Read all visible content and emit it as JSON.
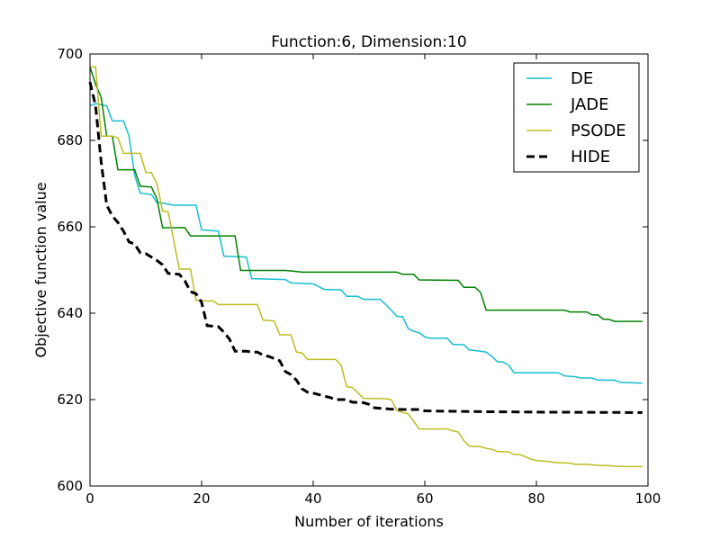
{
  "chart_data": {
    "type": "line",
    "title": "Function:6, Dimension:10",
    "xlabel": "Number of iterations",
    "ylabel": "Objective function value",
    "xlim": [
      0,
      100
    ],
    "ylim": [
      600,
      700
    ],
    "xticks": [
      0,
      20,
      40,
      60,
      80,
      100
    ],
    "yticks": [
      600,
      620,
      640,
      660,
      680,
      700
    ],
    "grid": false,
    "legend_position": "top-right",
    "series": [
      {
        "name": "DE",
        "color": "#17becf",
        "dash": "solid",
        "points": [
          [
            0,
            688
          ],
          [
            1,
            688.5
          ],
          [
            3,
            688
          ],
          [
            4,
            684.5
          ],
          [
            6,
            684.5
          ],
          [
            7,
            681
          ],
          [
            8,
            672
          ],
          [
            9,
            667.8
          ],
          [
            11,
            667.5
          ],
          [
            12,
            665.6
          ],
          [
            13,
            665.5
          ],
          [
            15,
            665
          ],
          [
            19,
            665
          ],
          [
            20,
            659.3
          ],
          [
            23,
            659
          ],
          [
            24,
            653.2
          ],
          [
            28,
            653
          ],
          [
            29,
            648
          ],
          [
            35,
            647.8
          ],
          [
            36,
            647
          ],
          [
            40,
            646.8
          ],
          [
            42,
            645.5
          ],
          [
            45,
            645.4
          ],
          [
            46,
            643.9
          ],
          [
            48,
            643.9
          ],
          [
            49,
            643.2
          ],
          [
            52,
            643.2
          ],
          [
            53,
            642
          ],
          [
            55,
            639.3
          ],
          [
            56,
            639.2
          ],
          [
            57,
            636.5
          ],
          [
            58,
            635.8
          ],
          [
            59,
            635.5
          ],
          [
            60,
            634.5
          ],
          [
            61,
            634.2
          ],
          [
            64,
            634.2
          ],
          [
            65,
            632.8
          ],
          [
            67,
            632.7
          ],
          [
            68,
            631.5
          ],
          [
            70,
            631.2
          ],
          [
            71,
            631
          ],
          [
            72,
            630
          ],
          [
            73,
            628.8
          ],
          [
            74,
            628.7
          ],
          [
            75,
            628
          ],
          [
            76,
            626.2
          ],
          [
            84,
            626.2
          ],
          [
            85,
            625.5
          ],
          [
            87,
            625.3
          ],
          [
            88,
            625
          ],
          [
            90,
            625
          ],
          [
            91,
            624.5
          ],
          [
            94,
            624.5
          ],
          [
            95,
            624
          ],
          [
            99,
            623.8
          ]
        ]
      },
      {
        "name": "JADE",
        "color": "#008000",
        "dash": "solid",
        "points": [
          [
            0,
            697
          ],
          [
            1,
            693
          ],
          [
            2,
            690
          ],
          [
            3,
            681
          ],
          [
            4,
            681
          ],
          [
            5,
            673.2
          ],
          [
            8,
            673.2
          ],
          [
            9,
            669.4
          ],
          [
            11,
            669.2
          ],
          [
            12,
            666.5
          ],
          [
            13,
            659.8
          ],
          [
            17,
            659.8
          ],
          [
            18,
            657.9
          ],
          [
            26,
            657.9
          ],
          [
            27,
            649.9
          ],
          [
            35,
            649.9
          ],
          [
            36,
            649.8
          ],
          [
            38,
            649.5
          ],
          [
            55,
            649.5
          ],
          [
            56,
            649
          ],
          [
            58,
            649
          ],
          [
            59,
            647.7
          ],
          [
            66,
            647.6
          ],
          [
            67,
            646
          ],
          [
            69,
            646
          ],
          [
            70,
            644.8
          ],
          [
            71,
            640.7
          ],
          [
            85,
            640.7
          ],
          [
            86,
            640.3
          ],
          [
            89,
            640.3
          ],
          [
            90,
            639.6
          ],
          [
            91,
            639.6
          ],
          [
            92,
            638.6
          ],
          [
            93,
            638.6
          ],
          [
            94,
            638.1
          ],
          [
            99,
            638.1
          ]
        ]
      },
      {
        "name": "PSODE",
        "color": "#bcbd22",
        "dash": "solid",
        "points": [
          [
            0,
            697
          ],
          [
            1,
            697
          ],
          [
            2,
            681
          ],
          [
            4,
            681
          ],
          [
            5,
            680.6
          ],
          [
            6,
            677
          ],
          [
            9,
            677
          ],
          [
            10,
            672.6
          ],
          [
            11,
            672.5
          ],
          [
            12,
            670
          ],
          [
            13,
            663.6
          ],
          [
            14,
            663.5
          ],
          [
            16,
            650.2
          ],
          [
            18,
            650.2
          ],
          [
            19,
            643
          ],
          [
            20,
            643
          ],
          [
            21,
            642.8
          ],
          [
            22,
            642.9
          ],
          [
            23,
            642
          ],
          [
            30,
            642
          ],
          [
            31,
            638.4
          ],
          [
            33,
            638.2
          ],
          [
            34,
            635
          ],
          [
            36,
            635
          ],
          [
            37,
            631
          ],
          [
            38,
            630.8
          ],
          [
            39,
            629.3
          ],
          [
            44,
            629.3
          ],
          [
            45,
            628
          ],
          [
            46,
            623
          ],
          [
            47,
            622.8
          ],
          [
            48,
            621.6
          ],
          [
            49,
            620.3
          ],
          [
            53,
            620.2
          ],
          [
            54,
            620
          ],
          [
            55,
            617.5
          ],
          [
            56,
            617
          ],
          [
            57,
            616.7
          ],
          [
            58,
            615
          ],
          [
            59,
            613.2
          ],
          [
            64,
            613.2
          ],
          [
            65,
            612.8
          ],
          [
            66,
            612.5
          ],
          [
            67,
            610.5
          ],
          [
            68,
            609.2
          ],
          [
            70,
            609.1
          ],
          [
            71,
            608.7
          ],
          [
            72,
            608.5
          ],
          [
            73,
            608
          ],
          [
            75,
            607.9
          ],
          [
            76,
            607.3
          ],
          [
            77,
            607.3
          ],
          [
            78,
            606.8
          ],
          [
            79,
            606.2
          ],
          [
            80,
            605.9
          ],
          [
            81,
            605.8
          ],
          [
            82,
            605.7
          ],
          [
            83,
            605.5
          ],
          [
            84,
            605.4
          ],
          [
            86,
            605.3
          ],
          [
            87,
            605
          ],
          [
            89,
            605
          ],
          [
            90,
            604.9
          ],
          [
            91,
            604.8
          ],
          [
            93,
            604.7
          ],
          [
            94,
            604.6
          ],
          [
            96,
            604.5
          ],
          [
            99,
            604.5
          ]
        ]
      },
      {
        "name": "HIDE",
        "color": "#000000",
        "dash": "dashed",
        "points": [
          [
            0,
            693.5
          ],
          [
            1,
            688
          ],
          [
            2,
            675
          ],
          [
            3,
            665
          ],
          [
            4,
            662.5
          ],
          [
            5,
            661
          ],
          [
            6,
            659
          ],
          [
            7,
            656.5
          ],
          [
            8,
            656
          ],
          [
            9,
            654
          ],
          [
            10,
            653.8
          ],
          [
            11,
            653
          ],
          [
            12,
            652.2
          ],
          [
            13,
            651.2
          ],
          [
            14,
            649.2
          ],
          [
            16,
            649
          ],
          [
            17,
            647.5
          ],
          [
            18,
            645
          ],
          [
            19,
            644.5
          ],
          [
            20,
            642.5
          ],
          [
            21,
            637.1
          ],
          [
            23,
            636.9
          ],
          [
            24,
            635.6
          ],
          [
            25,
            634
          ],
          [
            26,
            631.2
          ],
          [
            28,
            631.2
          ],
          [
            29,
            631
          ],
          [
            30,
            631
          ],
          [
            31,
            630.3
          ],
          [
            32,
            630
          ],
          [
            33,
            629.5
          ],
          [
            34,
            629
          ],
          [
            35,
            626.5
          ],
          [
            36,
            625.8
          ],
          [
            37,
            624.5
          ],
          [
            38,
            622.5
          ],
          [
            39,
            621.7
          ],
          [
            40,
            621.5
          ],
          [
            42,
            620.8
          ],
          [
            43,
            620.5
          ],
          [
            44,
            620
          ],
          [
            46,
            620
          ],
          [
            47,
            619.4
          ],
          [
            49,
            619.3
          ],
          [
            50,
            618.9
          ],
          [
            51,
            618.1
          ],
          [
            53,
            617.9
          ],
          [
            54,
            617.8
          ],
          [
            56,
            617.7
          ],
          [
            59,
            617.7
          ],
          [
            60,
            617.4
          ],
          [
            65,
            617.3
          ],
          [
            70,
            617.2
          ],
          [
            80,
            617.1
          ],
          [
            99,
            617
          ]
        ]
      }
    ]
  }
}
